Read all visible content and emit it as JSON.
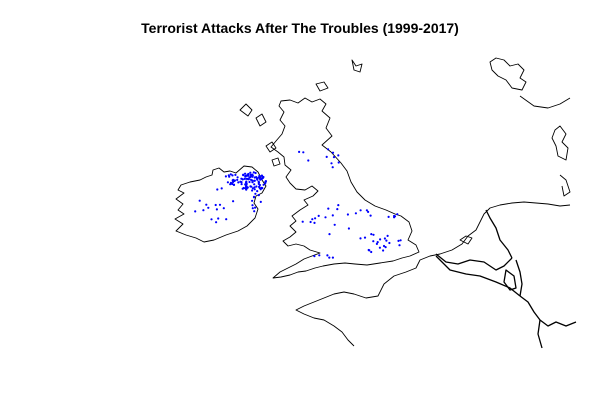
{
  "title": "Terrorist Attacks After The Troubles (1999-2017)",
  "colors": {
    "points": "#0000ff",
    "lines": "#000000",
    "background": "#ffffff"
  },
  "map": {
    "type": "point-map",
    "region": "British Isles and adjacent continental Europe",
    "point_density": {
      "northern-ireland": "very high (dense cluster)",
      "republic-of-ireland": "scattered",
      "great-britain": "scattered, concentrated in England",
      "london": "moderate"
    }
  }
}
